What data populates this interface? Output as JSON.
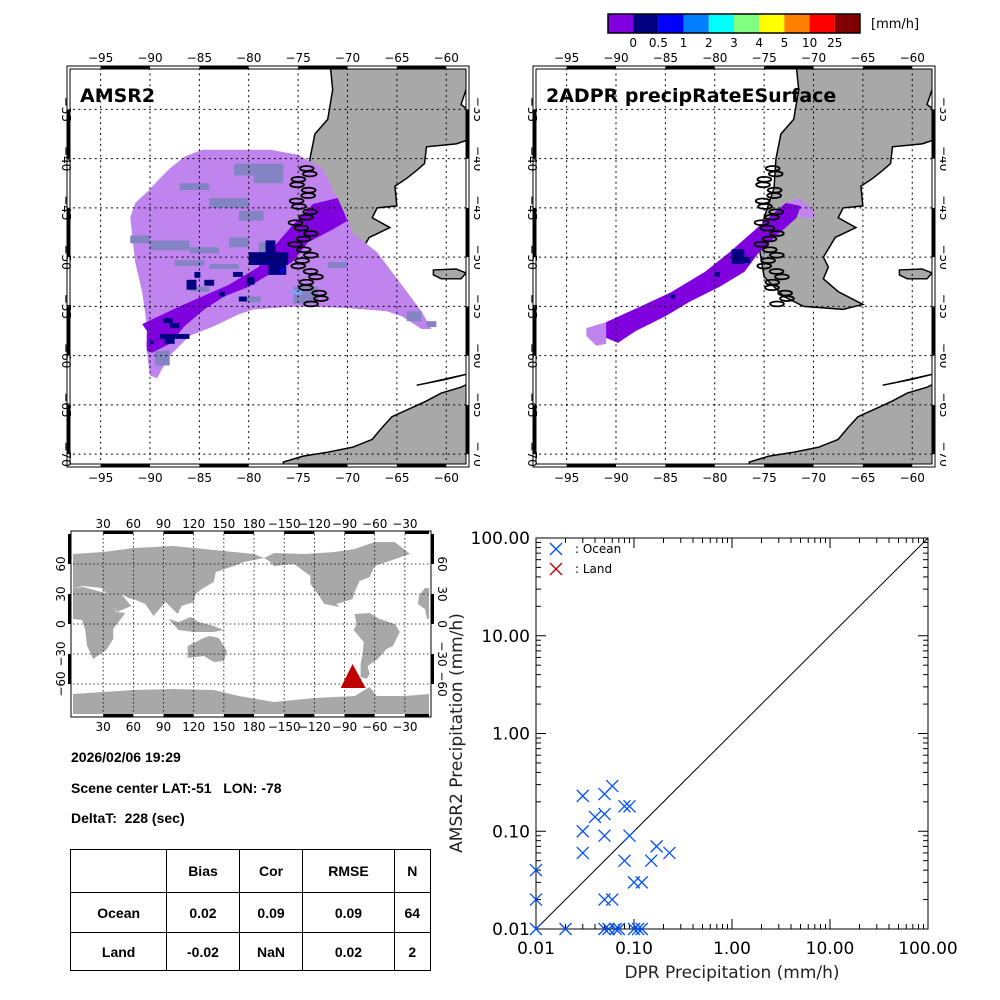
{
  "colorbar": {
    "colors": [
      "#8000e0",
      "#000080",
      "#0000ff",
      "#0080ff",
      "#00ffff",
      "#80ff80",
      "#ffff00",
      "#ff8000",
      "#ff0000",
      "#800000"
    ],
    "labels": [
      "0",
      "0.5",
      "1",
      "2",
      "3",
      "4",
      "5",
      "10",
      "25"
    ],
    "unit": "[mm/h]"
  },
  "maps": [
    {
      "title": "AMSR2"
    },
    {
      "title": "2ADPR precipRateESurface"
    }
  ],
  "map_lon_ticks": [
    "−95",
    "−90",
    "−85",
    "−80",
    "−75",
    "−70",
    "−65",
    "−60"
  ],
  "map_lat_ticks": [
    "−35",
    "−40",
    "−45",
    "−50",
    "−55",
    "−60",
    "−65",
    "−70"
  ],
  "precip_colors": {
    "light": "#c084ee",
    "grayblue": "#8484c4",
    "purple": "#8000e0",
    "navy": "#000080",
    "blue": "#0000ff",
    "land": "#a8a8a8"
  },
  "world_map": {
    "lon_ticks": [
      "30",
      "60",
      "90",
      "120",
      "150",
      "180",
      "−150",
      "−120",
      "−90",
      "−60",
      "−30"
    ],
    "lat_ticks": [
      "60",
      "30",
      "0",
      "−30",
      "−60"
    ],
    "marker_color": "#c00000"
  },
  "info": {
    "datetime": "2026/02/06 19:29",
    "scene_center": "Scene center LAT:-51   LON: -78",
    "delta_t": "DeltaT:  228 (sec)"
  },
  "stats_table": {
    "headers": [
      "",
      "Bias",
      "Cor",
      "RMSE",
      "N"
    ],
    "rows": [
      [
        "Ocean",
        "0.02",
        "0.09",
        "0.09",
        "64"
      ],
      [
        "Land",
        "-0.02",
        "NaN",
        "0.02",
        "2"
      ]
    ]
  },
  "chart_data": {
    "type": "scatter",
    "xlabel": "DPR Precipitation (mm/h)",
    "ylabel": "AMSR2 Precipitation (mm/h)",
    "xscale": "log",
    "yscale": "log",
    "xlim": [
      0.01,
      100
    ],
    "ylim": [
      0.01,
      100
    ],
    "xtick_labels": [
      "0.01",
      "0.10",
      "1.00",
      "10.00",
      "100.00"
    ],
    "ytick_labels": [
      "0.01",
      "0.10",
      "1.00",
      "10.00",
      "100.00"
    ],
    "reference_line": "1:1",
    "legend": {
      "placement": "top-left",
      "entries": [
        {
          "name": ": Ocean",
          "color": "#0050ff"
        },
        {
          "name": ": Land",
          "color": "#c00000"
        }
      ]
    },
    "series": [
      {
        "name": "Ocean",
        "color": "#0050ff",
        "x": [
          0.01,
          0.01,
          0.01,
          0.02,
          0.03,
          0.03,
          0.03,
          0.04,
          0.05,
          0.05,
          0.05,
          0.05,
          0.06,
          0.06,
          0.05,
          0.055,
          0.065,
          0.07,
          0.08,
          0.09,
          0.09,
          0.08,
          0.1,
          0.11,
          0.12,
          0.1,
          0.12,
          0.15,
          0.17,
          0.23
        ],
        "y": [
          0.01,
          0.02,
          0.04,
          0.01,
          0.23,
          0.1,
          0.06,
          0.14,
          0.24,
          0.15,
          0.09,
          0.02,
          0.02,
          0.29,
          0.01,
          0.01,
          0.01,
          0.01,
          0.18,
          0.18,
          0.09,
          0.05,
          0.01,
          0.01,
          0.01,
          0.03,
          0.03,
          0.05,
          0.07,
          0.06
        ]
      },
      {
        "name": "Land",
        "color": "#c00000",
        "x": [],
        "y": []
      }
    ]
  }
}
